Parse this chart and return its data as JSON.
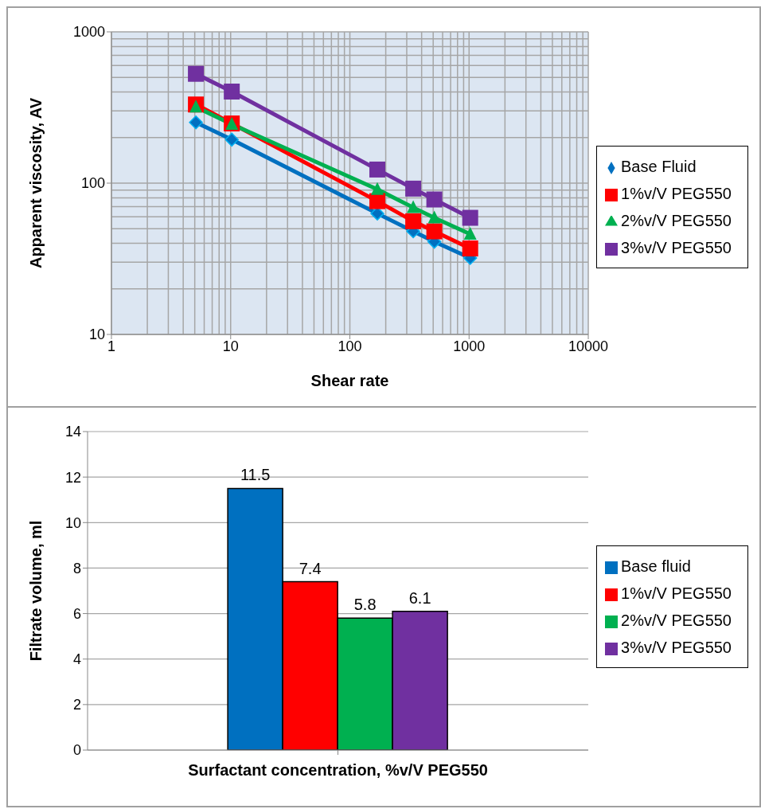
{
  "chart_data": [
    {
      "type": "line",
      "xlabel": "Shear rate",
      "ylabel": "Apparent viscosity, AV",
      "log": "xy",
      "xlim": [
        1,
        10000
      ],
      "xticks": [
        1,
        10,
        100,
        1000,
        10000
      ],
      "ylim": [
        10,
        1000
      ],
      "yticks": [
        10,
        100,
        1000
      ],
      "grid": true,
      "legend": "right",
      "line_style": "solid",
      "x": [
        5.11,
        10.22,
        170,
        340,
        511,
        1022
      ],
      "series": [
        {
          "name": "Base Fluid",
          "color": "#0070c0",
          "marker": "diamond",
          "values": [
            252,
            194,
            63,
            48,
            41,
            32
          ]
        },
        {
          "name": "1%v/V PEG550",
          "color": "#ff0000",
          "marker": "square",
          "values": [
            331,
            248,
            76,
            56,
            48,
            37
          ]
        },
        {
          "name": "2%v/V PEG550",
          "color": "#00b050",
          "marker": "triangle",
          "values": [
            319,
            245,
            91,
            69,
            59,
            46
          ]
        },
        {
          "name": "3%v/V PEG550",
          "color": "#7030a0",
          "marker": "square",
          "values": [
            528,
            403,
            123,
            92,
            78,
            59
          ]
        }
      ]
    },
    {
      "type": "bar",
      "xlabel": "Surfactant concentration, %v/V PEG550",
      "ylabel": "Filtrate volume, ml",
      "categories": [
        null
      ],
      "ylim": [
        0,
        14
      ],
      "yticks": [
        0,
        2,
        4,
        6,
        8,
        10,
        12,
        14
      ],
      "grid": "y",
      "legend": "right",
      "data_labels": true,
      "series": [
        {
          "name": "Base fluid",
          "color": "#0070c0",
          "values": [
            11.5
          ]
        },
        {
          "name": "1%v/V PEG550",
          "color": "#ff0000",
          "values": [
            7.4
          ]
        },
        {
          "name": "2%v/V PEG550",
          "color": "#00b050",
          "values": [
            5.8
          ]
        },
        {
          "name": "3%v/V PEG550",
          "color": "#7030a0",
          "values": [
            6.1
          ]
        }
      ]
    }
  ]
}
